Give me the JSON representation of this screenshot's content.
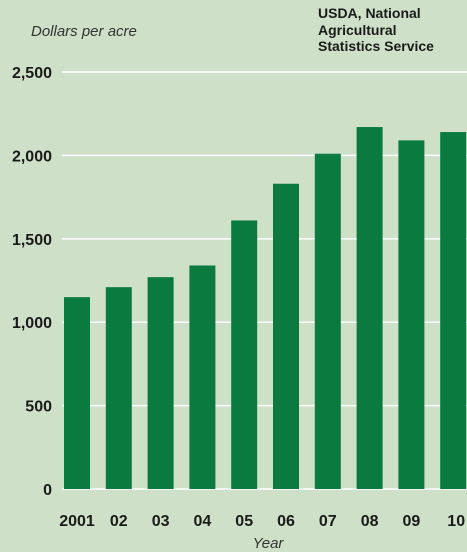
{
  "chart_data": {
    "type": "bar",
    "ylabel": "Dollars per acre",
    "xlabel": "Year",
    "source_lines": [
      "USDA, National",
      "Agricultural",
      "Statistics Service"
    ],
    "categories": [
      "2001",
      "02",
      "03",
      "04",
      "05",
      "06",
      "07",
      "08",
      "09",
      "10"
    ],
    "values": [
      1150,
      1210,
      1270,
      1340,
      1610,
      1830,
      2010,
      2170,
      2090,
      2140
    ],
    "ylim": [
      0,
      2500
    ],
    "yticks": [
      0,
      500,
      1000,
      1500,
      2000,
      2500
    ],
    "ytick_labels": [
      "0",
      "500",
      "1,000",
      "1,500",
      "2,000",
      "2,500"
    ],
    "grid": true,
    "bar_color": "#0a7a3e",
    "background_color": "#cfe0c9",
    "grid_color": "#ffffff"
  }
}
